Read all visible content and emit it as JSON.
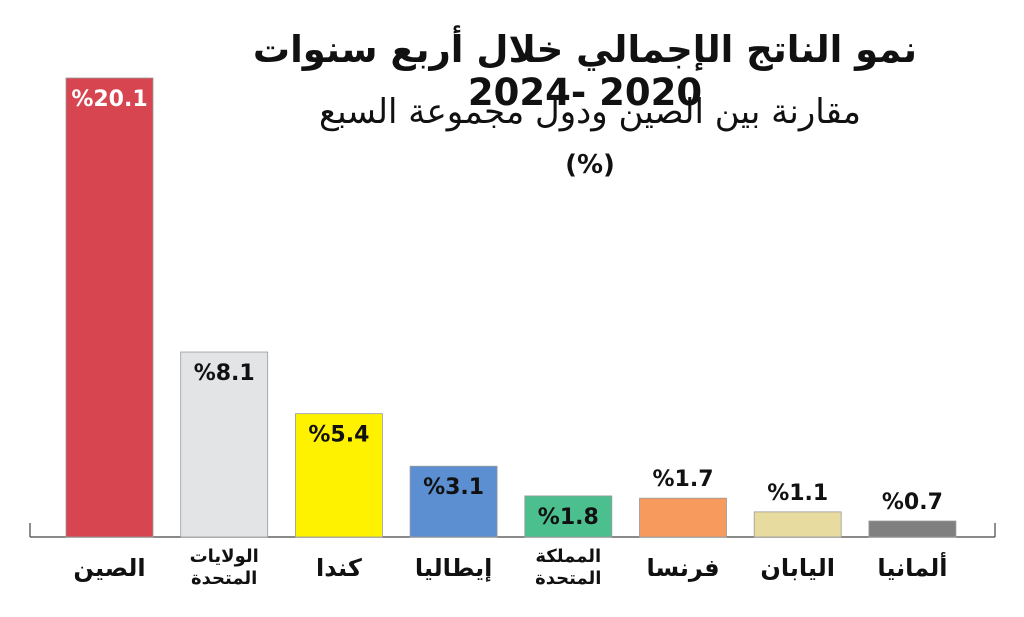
{
  "chart_data": {
    "type": "bar",
    "title": "نمو الناتج الإجمالي خلال أربع سنوات 2020 -2024",
    "subtitle": "مقارنة بين الصين ودول مجموعة السبع",
    "unit_label": "(%)",
    "categories": [
      "الصين",
      "الولايات المتحدة",
      "كندا",
      "إيطاليا",
      "المملكة المتحدة",
      "فرنسا",
      "اليابان",
      "ألمانيا"
    ],
    "category_lines": [
      [
        "الصين"
      ],
      [
        "الولايات",
        "المتحدة"
      ],
      [
        "كندا"
      ],
      [
        "إيطاليا"
      ],
      [
        "المملكة",
        "المتحدة"
      ],
      [
        "فرنسا"
      ],
      [
        "اليابان"
      ],
      [
        "ألمانيا"
      ]
    ],
    "values": [
      20.1,
      8.1,
      5.4,
      3.1,
      1.8,
      1.7,
      1.1,
      0.7
    ],
    "value_labels": [
      "%20.1",
      "%8.1",
      "%5.4",
      "%3.1",
      "%1.8",
      "%1.7",
      "%1.1",
      "%0.7"
    ],
    "colors": [
      "#d64550",
      "#e3e4e6",
      "#fff200",
      "#5b8fd1",
      "#4cbf8e",
      "#f79a5d",
      "#e8dba0",
      "#808080"
    ],
    "ylim": [
      0,
      20.1
    ],
    "grid": false,
    "legend": "none"
  }
}
